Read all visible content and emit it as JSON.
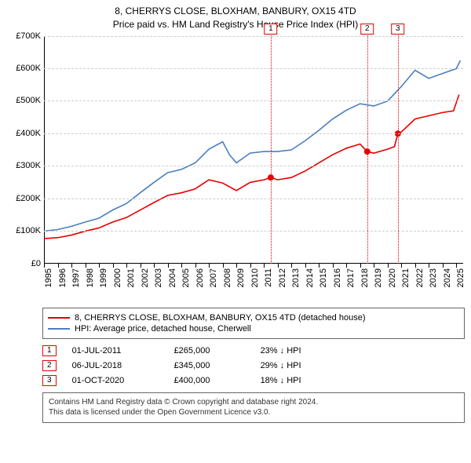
{
  "title_line1": "8, CHERRYS CLOSE, BLOXHAM, BANBURY, OX15 4TD",
  "title_line2": "Price paid vs. HM Land Registry's House Price Index (HPI)",
  "chart": {
    "type": "line",
    "background_color": "#ffffff",
    "grid_color": "#cccccc",
    "axis_color": "#000000",
    "x": {
      "min": 1995,
      "max": 2025.5,
      "ticks": [
        1995,
        1996,
        1997,
        1998,
        1999,
        2000,
        2001,
        2002,
        2003,
        2004,
        2005,
        2006,
        2007,
        2008,
        2009,
        2010,
        2011,
        2012,
        2013,
        2014,
        2015,
        2016,
        2017,
        2018,
        2019,
        2020,
        2021,
        2022,
        2023,
        2024,
        2025
      ],
      "label_fontsize": 11
    },
    "y": {
      "min": 0,
      "max": 700000,
      "ticks": [
        0,
        100000,
        200000,
        300000,
        400000,
        500000,
        600000,
        700000
      ],
      "tick_labels": [
        "£0",
        "£100K",
        "£200K",
        "£300K",
        "£400K",
        "£500K",
        "£600K",
        "£700K"
      ],
      "label_fontsize": 11
    },
    "series": [
      {
        "name": "property",
        "label": "8, CHERRYS CLOSE, BLOXHAM, BANBURY, OX15 4TD (detached house)",
        "color": "#e60000",
        "line_width": 1.6,
        "points": [
          [
            1995,
            77000
          ],
          [
            1996,
            80000
          ],
          [
            1997,
            88000
          ],
          [
            1998,
            100000
          ],
          [
            1999,
            110000
          ],
          [
            2000,
            128000
          ],
          [
            2001,
            142000
          ],
          [
            2002,
            165000
          ],
          [
            2003,
            188000
          ],
          [
            2004,
            210000
          ],
          [
            2005,
            218000
          ],
          [
            2006,
            230000
          ],
          [
            2007,
            258000
          ],
          [
            2008,
            248000
          ],
          [
            2009,
            225000
          ],
          [
            2010,
            250000
          ],
          [
            2011,
            258000
          ],
          [
            2011.5,
            265000
          ],
          [
            2012,
            258000
          ],
          [
            2013,
            265000
          ],
          [
            2014,
            285000
          ],
          [
            2015,
            310000
          ],
          [
            2016,
            335000
          ],
          [
            2017,
            355000
          ],
          [
            2018,
            368000
          ],
          [
            2018.52,
            345000
          ],
          [
            2019,
            340000
          ],
          [
            2020,
            352000
          ],
          [
            2020.5,
            360000
          ],
          [
            2020.75,
            400000
          ],
          [
            2021,
            405000
          ],
          [
            2022,
            445000
          ],
          [
            2023,
            455000
          ],
          [
            2024,
            465000
          ],
          [
            2024.8,
            470000
          ],
          [
            2025.2,
            520000
          ]
        ]
      },
      {
        "name": "hpi",
        "label": "HPI: Average price, detached house, Cherwell",
        "color": "#4a7fc0",
        "line_width": 1.6,
        "points": [
          [
            1995,
            100000
          ],
          [
            1996,
            105000
          ],
          [
            1997,
            115000
          ],
          [
            1998,
            128000
          ],
          [
            1999,
            140000
          ],
          [
            2000,
            165000
          ],
          [
            2001,
            185000
          ],
          [
            2002,
            218000
          ],
          [
            2003,
            250000
          ],
          [
            2004,
            280000
          ],
          [
            2005,
            290000
          ],
          [
            2006,
            310000
          ],
          [
            2007,
            352000
          ],
          [
            2008,
            375000
          ],
          [
            2008.5,
            335000
          ],
          [
            2009,
            310000
          ],
          [
            2010,
            340000
          ],
          [
            2011,
            345000
          ],
          [
            2012,
            345000
          ],
          [
            2013,
            350000
          ],
          [
            2014,
            378000
          ],
          [
            2015,
            410000
          ],
          [
            2016,
            445000
          ],
          [
            2017,
            472000
          ],
          [
            2018,
            492000
          ],
          [
            2019,
            485000
          ],
          [
            2020,
            500000
          ],
          [
            2021,
            545000
          ],
          [
            2022,
            595000
          ],
          [
            2023,
            570000
          ],
          [
            2024,
            585000
          ],
          [
            2025,
            600000
          ],
          [
            2025.3,
            625000
          ]
        ]
      }
    ],
    "events": [
      {
        "id": "1",
        "x": 2011.5,
        "date": "01-JUL-2011",
        "price": "£265,000",
        "delta": "23% ↓ HPI",
        "dot_y": 265000
      },
      {
        "id": "2",
        "x": 2018.52,
        "date": "06-JUL-2018",
        "price": "£345,000",
        "delta": "29% ↓ HPI",
        "dot_y": 345000
      },
      {
        "id": "3",
        "x": 2020.75,
        "date": "01-OCT-2020",
        "price": "£400,000",
        "delta": "18% ↓ HPI",
        "dot_y": 400000
      }
    ],
    "event_line_color": "#e60000",
    "event_dot_color": "#e60000",
    "event_dot_radius": 4
  },
  "legend_header": "legend",
  "footer_line1": "Contains HM Land Registry data © Crown copyright and database right 2024.",
  "footer_line2": "This data is licensed under the Open Government Licence v3.0."
}
